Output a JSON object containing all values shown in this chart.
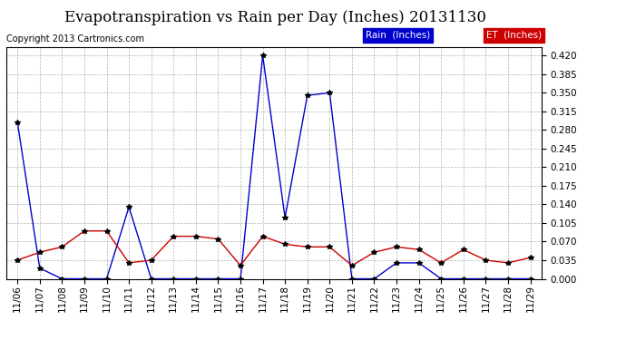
{
  "title": "Evapotranspiration vs Rain per Day (Inches) 20131130",
  "copyright": "Copyright 2013 Cartronics.com",
  "legend_rain": "Rain  (Inches)",
  "legend_et": "ET  (Inches)",
  "dates": [
    "11/06",
    "11/07",
    "11/08",
    "11/09",
    "11/10",
    "11/11",
    "11/12",
    "11/13",
    "11/14",
    "11/15",
    "11/16",
    "11/17",
    "11/18",
    "11/19",
    "11/20",
    "11/21",
    "11/22",
    "11/23",
    "11/24",
    "11/25",
    "11/26",
    "11/27",
    "11/28",
    "11/29"
  ],
  "rain": [
    0.295,
    0.02,
    0.0,
    0.0,
    0.0,
    0.135,
    0.0,
    0.0,
    0.0,
    0.0,
    0.0,
    0.42,
    0.115,
    0.345,
    0.35,
    0.0,
    0.0,
    0.03,
    0.03,
    0.0,
    0.0,
    0.0,
    0.0,
    0.0
  ],
  "et": [
    0.035,
    0.05,
    0.06,
    0.09,
    0.09,
    0.03,
    0.035,
    0.08,
    0.08,
    0.075,
    0.025,
    0.08,
    0.065,
    0.06,
    0.06,
    0.025,
    0.05,
    0.06,
    0.055,
    0.03,
    0.055,
    0.035,
    0.03,
    0.04
  ],
  "rain_color": "#0000cc",
  "et_color": "#cc0000",
  "background_color": "#ffffff",
  "grid_color": "#aaaaaa",
  "ylim": [
    0.0,
    0.435
  ],
  "yticks": [
    0.0,
    0.035,
    0.07,
    0.105,
    0.14,
    0.175,
    0.21,
    0.245,
    0.28,
    0.315,
    0.35,
    0.385,
    0.42
  ],
  "title_fontsize": 12,
  "copyright_fontsize": 7,
  "tick_fontsize": 7.5,
  "legend_fontsize": 7.5,
  "line_width": 1.0,
  "marker": "*",
  "marker_size": 4,
  "marker_color": "black"
}
